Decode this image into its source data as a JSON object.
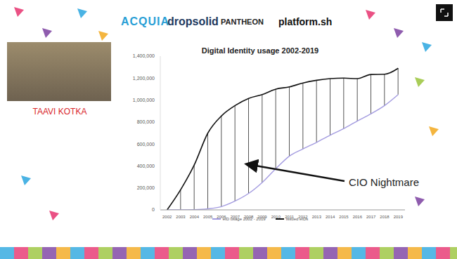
{
  "slide": {
    "logos": [
      "ACQUIA",
      "dropsolid",
      "PANTHEON",
      "platform.sh"
    ],
    "speaker": "TAAVI KOTKA"
  },
  "chart_data": {
    "type": "line",
    "title": "Digital Identity usage 2002-2019",
    "categories": [
      "2002",
      "2003",
      "2004",
      "2005",
      "2006",
      "2007",
      "2008",
      "2009",
      "2010",
      "2011",
      "2012",
      "2013",
      "2014",
      "2015",
      "2016",
      "2017",
      "2018",
      "2019"
    ],
    "series": [
      {
        "name": "eID usage 2002 - 2019",
        "color": "#a39be0",
        "values": [
          0,
          0,
          2000,
          10000,
          30000,
          80000,
          150000,
          250000,
          375000,
          490000,
          555000,
          615000,
          680000,
          740000,
          810000,
          875000,
          950000,
          1050000
        ]
      },
      {
        "name": "Issued eIDs",
        "color": "#111111",
        "values": [
          0,
          185000,
          410000,
          700000,
          856000,
          950000,
          1015000,
          1050000,
          1100000,
          1120000,
          1156000,
          1180000,
          1195000,
          1200000,
          1195000,
          1233000,
          1235000,
          1290000
        ]
      }
    ],
    "ylim": [
      0,
      1400000
    ],
    "yticks": [
      0,
      {
        "value": 200000,
        "label": "200,000"
      },
      {
        "value": 400000,
        "label": "400,000"
      },
      {
        "value": 600000,
        "label": "600,000"
      },
      {
        "value": 800000,
        "label": "800,000"
      },
      {
        "value": 1000000,
        "label": "1,000,000"
      },
      {
        "value": 1200000,
        "label": "1,200,000"
      },
      {
        "value": 1400000,
        "label": "1,400,000"
      }
    ],
    "grid": false,
    "legend": "bottom",
    "annotations": [
      {
        "text": "CIO Nightmare"
      }
    ]
  }
}
